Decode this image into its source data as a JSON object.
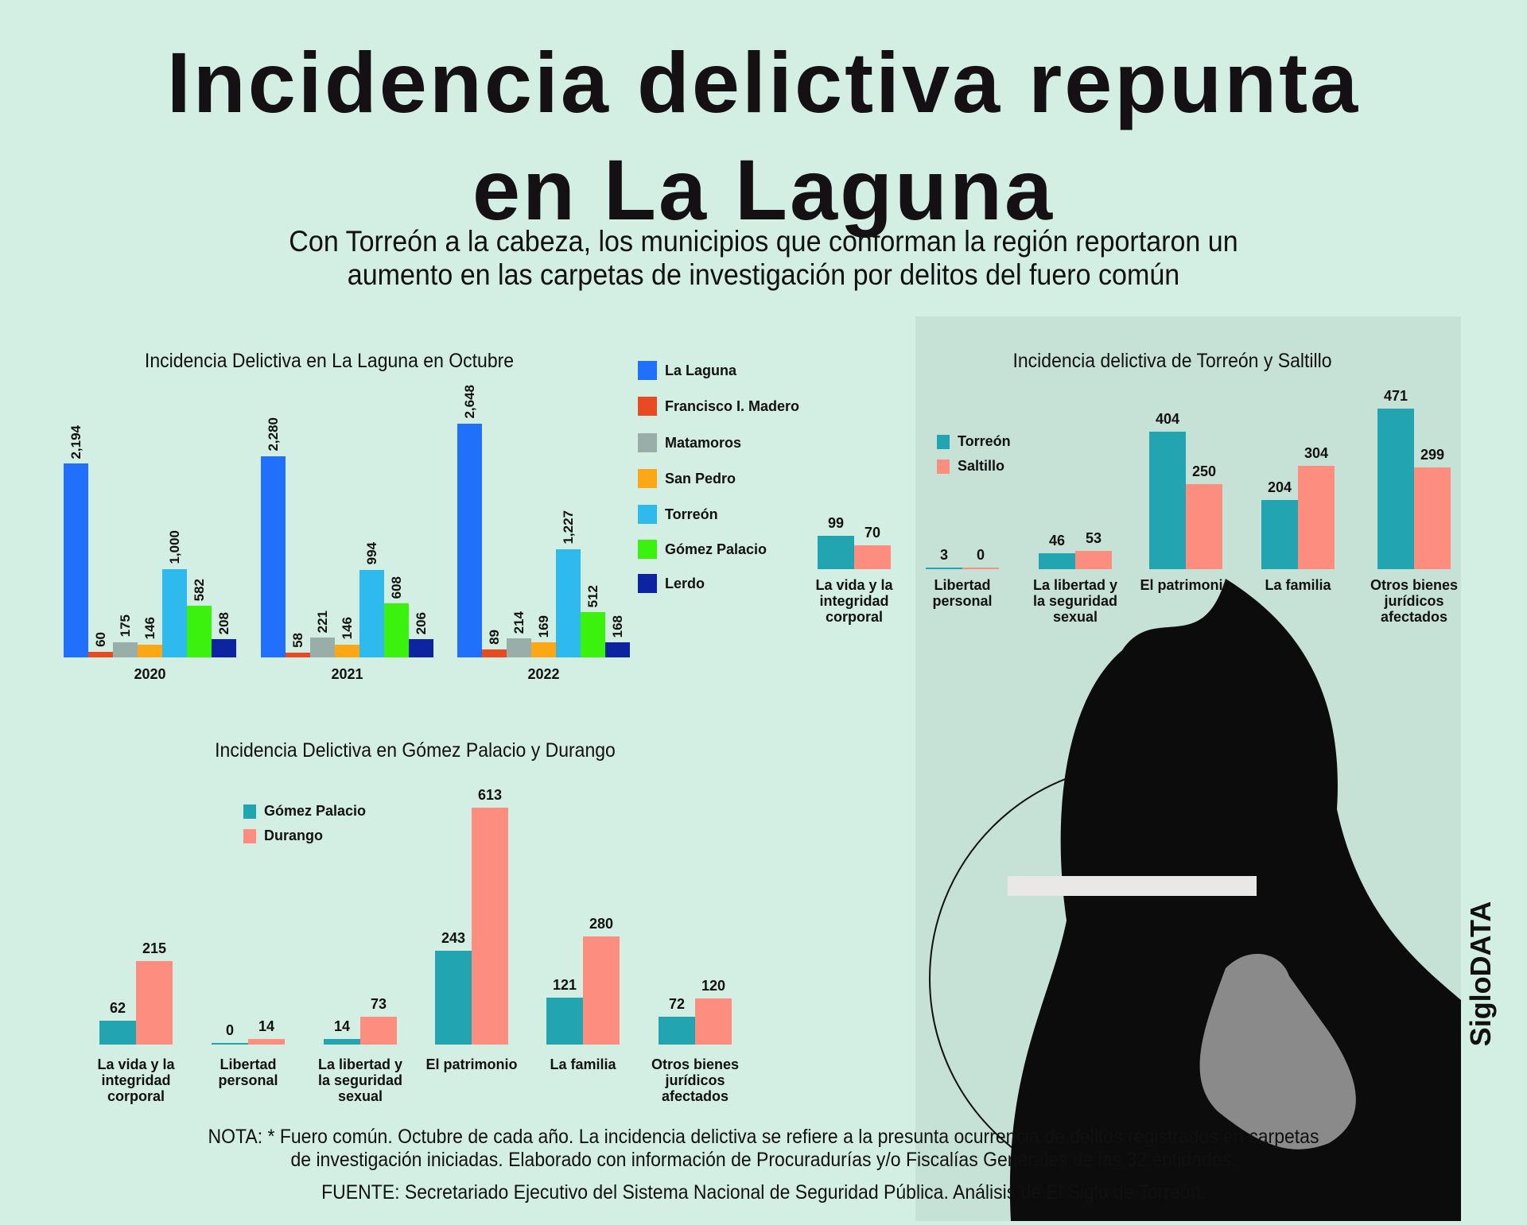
{
  "header": {
    "title_line1": "Incidencia delictiva repunta",
    "title_line2": "en La Laguna",
    "subtitle_line1": "Con Torreón a la cabeza, los municipios que conforman la región reportaron un",
    "subtitle_line2": "aumento en las carpetas de investigación por delitos del fuero común"
  },
  "chart_data": [
    {
      "type": "bar",
      "title": "Incidencia Delictiva en La Laguna en Octubre",
      "categories": [
        "2020",
        "2021",
        "2022"
      ],
      "series": [
        {
          "name": "La Laguna",
          "color": "#2170fb",
          "values": [
            2194,
            2280,
            2648
          ],
          "labels": [
            "2,194",
            "2,280",
            "2,648"
          ]
        },
        {
          "name": "Francisco I. Madero",
          "color": "#e84a22",
          "values": [
            60,
            58,
            89
          ],
          "labels": [
            "60",
            "58",
            "89"
          ]
        },
        {
          "name": "Matamoros",
          "color": "#9aaea9",
          "values": [
            175,
            221,
            214
          ],
          "labels": [
            "175",
            "221",
            "214"
          ]
        },
        {
          "name": "San Pedro",
          "color": "#fca816",
          "values": [
            146,
            146,
            169
          ],
          "labels": [
            "146",
            "146",
            "169"
          ]
        },
        {
          "name": "Torreón",
          "color": "#2fbaee",
          "values": [
            1000,
            994,
            1227
          ],
          "labels": [
            "1,000",
            "994",
            "1,227"
          ]
        },
        {
          "name": "Gómez Palacio",
          "color": "#3af20e",
          "values": [
            582,
            608,
            512
          ],
          "labels": [
            "582",
            "608",
            "512"
          ]
        },
        {
          "name": "Lerdo",
          "color": "#0d24a0",
          "values": [
            208,
            206,
            168
          ],
          "labels": [
            "208",
            "206",
            "168"
          ]
        }
      ],
      "ylim": [
        0,
        2648
      ],
      "legend": "right"
    },
    {
      "type": "bar",
      "title": "Incidencia delictiva de Torreón y Saltillo",
      "categories": [
        "La vida y la integridad corporal",
        "Libertad personal",
        "La libertad y la seguridad sexual",
        "El patrimonio",
        "La familia",
        "Otros bienes jurídicos afectados"
      ],
      "series": [
        {
          "name": "Torreón",
          "color": "#22a5b0",
          "values": [
            99,
            3,
            46,
            404,
            204,
            471
          ]
        },
        {
          "name": "Saltillo",
          "color": "#fd8e7f",
          "values": [
            70,
            0,
            53,
            250,
            304,
            299
          ]
        }
      ],
      "ylim": [
        0,
        471
      ],
      "legend": "top-left"
    },
    {
      "type": "bar",
      "title": "Incidencia Delictiva en Gómez Palacio y Durango",
      "categories": [
        "La vida y la integridad corporal",
        "Libertad personal",
        "La libertad y la seguridad sexual",
        "El patrimonio",
        "La familia",
        "Otros bienes jurídicos afectados"
      ],
      "series": [
        {
          "name": "Gómez Palacio",
          "color": "#22a5b0",
          "values": [
            62,
            0,
            14,
            243,
            121,
            72
          ]
        },
        {
          "name": "Durango",
          "color": "#fd8e7f",
          "values": [
            215,
            14,
            73,
            613,
            280,
            120
          ]
        }
      ],
      "ylim": [
        0,
        613
      ],
      "legend": "top-left"
    }
  ],
  "cat_lines": [
    [
      "La vida y la",
      "integridad",
      "corporal"
    ],
    [
      "Libertad",
      "personal"
    ],
    [
      "La libertad y",
      "la seguridad",
      "sexual"
    ],
    [
      "El patrimonio"
    ],
    [
      "La familia"
    ],
    [
      "Otros bienes",
      "jurídicos",
      "afectados"
    ]
  ],
  "footer": {
    "note_line1": "NOTA: * Fuero común. Octubre de cada año. La incidencia delictiva se refiere a la presunta ocurrencia de delitos registrados en carpetas",
    "note_line2": "de investigación iniciadas. Elaborado con información de Procuradurías y/o Fiscalías Generales de las 32 entidades.",
    "source": "FUENTE: Secretariado Ejecutivo del Sistema Nacional de Seguridad Pública. Análisis de El Siglo de Torreón.",
    "brand": "SigloDATA"
  }
}
